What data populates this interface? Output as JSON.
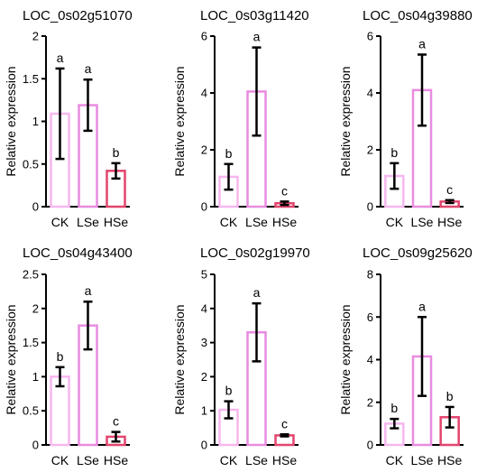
{
  "chart_data": [
    {
      "type": "bar",
      "title": "LOC_0s02g51070",
      "ylabel": "Relative expression",
      "categories": [
        "CK",
        "LSe",
        "HSe"
      ],
      "values": [
        1.09,
        1.19,
        0.42
      ],
      "errors": [
        0.53,
        0.3,
        0.09
      ],
      "significance": [
        "a",
        "a",
        "b"
      ],
      "ylim": [
        0,
        2
      ],
      "yticks": [
        "0",
        "0.5",
        "1",
        "1.5",
        "2"
      ]
    },
    {
      "type": "bar",
      "title": "LOC_0s03g11420",
      "ylabel": "Relative expression",
      "categories": [
        "CK",
        "LSe",
        "HSe"
      ],
      "values": [
        1.05,
        4.05,
        0.12
      ],
      "errors": [
        0.45,
        1.55,
        0.06
      ],
      "significance": [
        "b",
        "a",
        "c"
      ],
      "ylim": [
        0,
        6
      ],
      "yticks": [
        "0",
        "2",
        "4",
        "6"
      ]
    },
    {
      "type": "bar",
      "title": "LOC_0s04g39880",
      "ylabel": "Relative expression",
      "categories": [
        "CK",
        "LSe",
        "HSe"
      ],
      "values": [
        1.08,
        4.1,
        0.18
      ],
      "errors": [
        0.45,
        1.25,
        0.05
      ],
      "significance": [
        "b",
        "a",
        "c"
      ],
      "ylim": [
        0,
        6
      ],
      "yticks": [
        "0",
        "2",
        "4",
        "6"
      ]
    },
    {
      "type": "bar",
      "title": "LOC_0s04g43400",
      "ylabel": "Relative expression",
      "categories": [
        "CK",
        "LSe",
        "HSe"
      ],
      "values": [
        1.0,
        1.75,
        0.12
      ],
      "errors": [
        0.14,
        0.35,
        0.07
      ],
      "significance": [
        "b",
        "a",
        "c"
      ],
      "ylim": [
        0,
        2.5
      ],
      "yticks": [
        "0",
        "0.5",
        "1",
        "1.5",
        "2",
        "2.5"
      ]
    },
    {
      "type": "bar",
      "title": "LOC_0s02g19970",
      "ylabel": "Relative expression",
      "categories": [
        "CK",
        "LSe",
        "HSe"
      ],
      "values": [
        1.03,
        3.3,
        0.28
      ],
      "errors": [
        0.25,
        0.85,
        0.03
      ],
      "significance": [
        "b",
        "a",
        "c"
      ],
      "ylim": [
        0,
        5
      ],
      "yticks": [
        "0",
        "1",
        "2",
        "3",
        "4",
        "5"
      ]
    },
    {
      "type": "bar",
      "title": "LOC_0s09g25620",
      "ylabel": "Relative expression",
      "categories": [
        "CK",
        "LSe",
        "HSe"
      ],
      "values": [
        1.0,
        4.15,
        1.3
      ],
      "errors": [
        0.22,
        1.85,
        0.48
      ],
      "significance": [
        "b",
        "a",
        "b"
      ],
      "ylim": [
        0,
        8
      ],
      "yticks": [
        "0",
        "2",
        "4",
        "6",
        "8"
      ]
    }
  ],
  "colors": {
    "CK": "#f7b7ef",
    "LSe": "#e98ce0",
    "HSe": "#e2456e",
    "axis": "#000000",
    "error": "#000000"
  }
}
